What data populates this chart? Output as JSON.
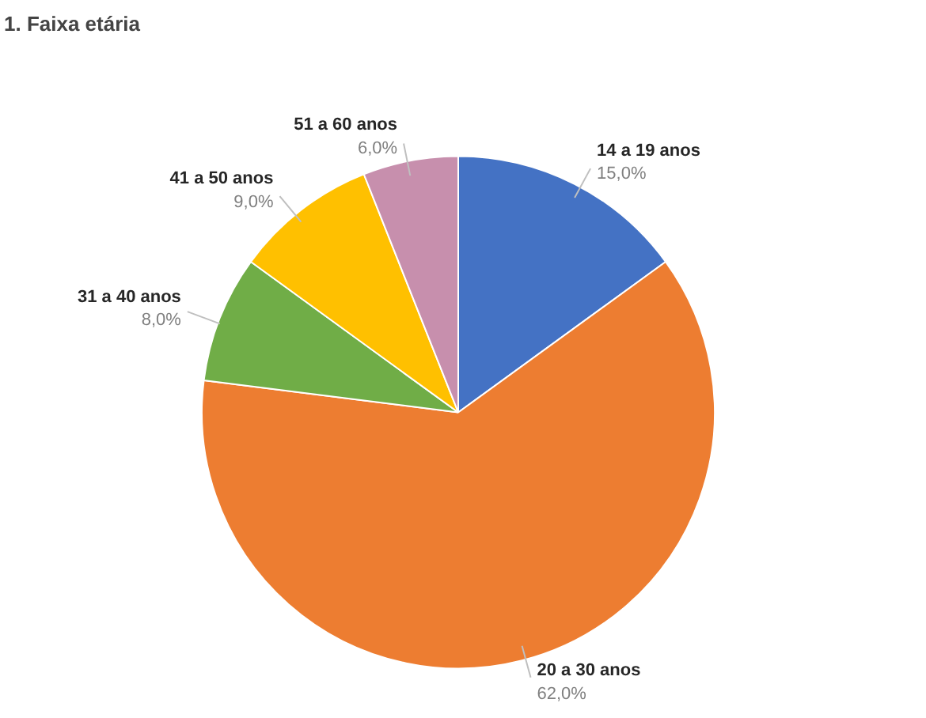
{
  "chart_data": {
    "type": "pie",
    "title": "1. Faixa etária",
    "categories": [
      "14 a 19 anos",
      "20 a 30 anos",
      "31 a 40 anos",
      "41 a 50 anos",
      "51 a 60 anos"
    ],
    "values": [
      15,
      62,
      8,
      9,
      6
    ],
    "colors": [
      "#4472c4",
      "#ed7d31",
      "#70ad47",
      "#ffc000",
      "#c78fad"
    ],
    "value_labels": [
      "15,0%",
      "62,0%",
      "8,0%",
      "9,0%",
      "6,0%"
    ]
  }
}
